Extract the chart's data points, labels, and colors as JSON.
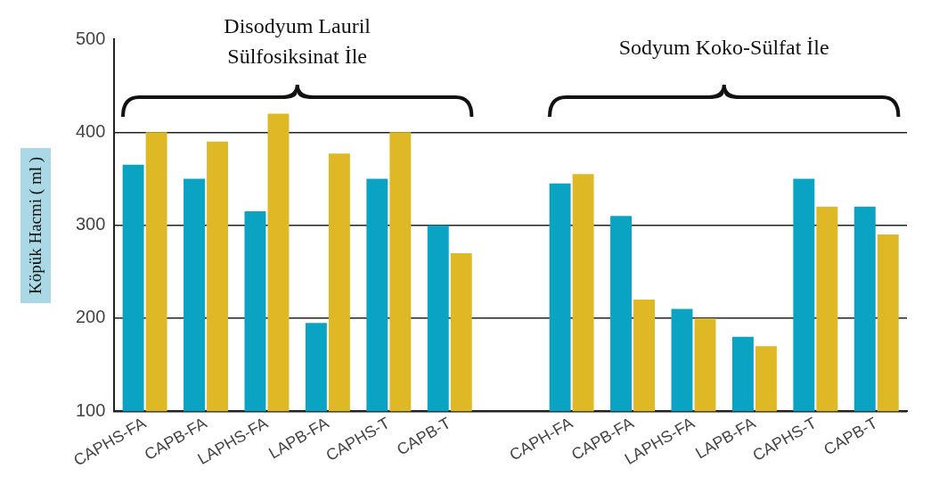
{
  "chart_data": {
    "type": "bar",
    "ylabel": "Köpük Hacmi ( ml )",
    "categories": [
      "CAPHS-FA",
      "CAPB-FA",
      "LAPHS-FA",
      "LAPB-FA",
      "CAPHS-T",
      "CAPB-T",
      null,
      "CAPH-FA",
      "CAPB-FA",
      "LAPHS-FA",
      "LAPB-FA",
      "CAPHS-T",
      "CAPB-T"
    ],
    "series": [
      {
        "color": "#0aa3c3",
        "values": [
          365,
          350,
          315,
          195,
          350,
          300,
          null,
          345,
          310,
          210,
          180,
          350,
          320
        ]
      },
      {
        "color": "#dfb826",
        "values": [
          400,
          390,
          420,
          377,
          400,
          270,
          null,
          355,
          220,
          200,
          170,
          320,
          290
        ]
      }
    ],
    "ylim": [
      100,
      500
    ],
    "yticks": [
      100,
      200,
      300,
      400,
      500
    ],
    "grid": "y",
    "legend": false,
    "annotations": [
      "Disodyum Lauril Sülfosiksinat İle",
      "Sodyum Koko-Sülfat İle"
    ]
  }
}
